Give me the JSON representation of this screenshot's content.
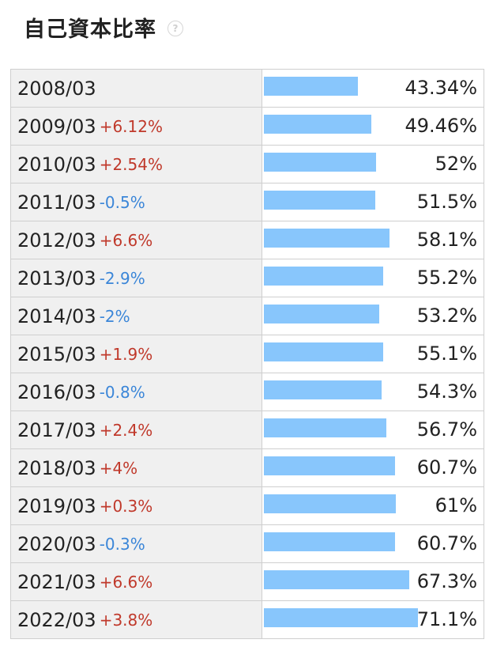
{
  "header": {
    "title": "自己資本比率",
    "help_icon": "question-circle-icon"
  },
  "colors": {
    "bar": "#88c6fc",
    "increase": "#c0392b",
    "decrease": "#3b86d8"
  },
  "chart_data": {
    "type": "bar",
    "title": "自己資本比率",
    "categories": [
      "2008/03",
      "2009/03",
      "2010/03",
      "2011/03",
      "2012/03",
      "2013/03",
      "2014/03",
      "2015/03",
      "2016/03",
      "2017/03",
      "2018/03",
      "2019/03",
      "2020/03",
      "2021/03",
      "2022/03"
    ],
    "values": [
      43.34,
      49.46,
      52,
      51.5,
      58.1,
      55.2,
      53.2,
      55.1,
      54.3,
      56.7,
      60.7,
      61,
      60.7,
      67.3,
      71.1
    ],
    "value_labels": [
      "43.34%",
      "49.46%",
      "52%",
      "51.5%",
      "58.1%",
      "55.2%",
      "53.2%",
      "55.1%",
      "54.3%",
      "56.7%",
      "60.7%",
      "61%",
      "60.7%",
      "67.3%",
      "71.1%"
    ],
    "changes": [
      "",
      "+6.12%",
      "+2.54%",
      "-0.5%",
      "+6.6%",
      "-2.9%",
      "-2%",
      "+1.9%",
      "-0.8%",
      "+2.4%",
      "+4%",
      "+0.3%",
      "-0.3%",
      "+6.6%",
      "+3.8%"
    ],
    "xlim": [
      0,
      100
    ]
  }
}
